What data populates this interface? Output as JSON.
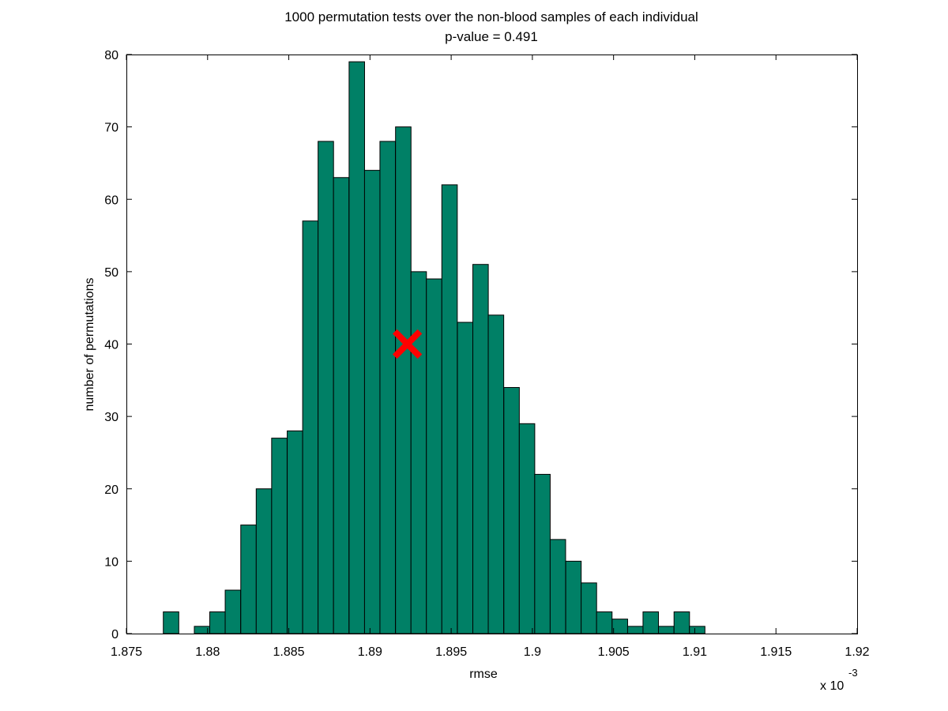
{
  "chart_data": {
    "type": "bar",
    "title": "1000 permutation tests over the non-blood samples of each individual",
    "subtitle": "p-value = 0.491",
    "xlabel": "rmse",
    "ylabel": "number of permutations",
    "x_exponent_label": "x 10",
    "x_exponent": "-3",
    "xlim": [
      1.875,
      1.92
    ],
    "ylim": [
      0,
      80
    ],
    "x_ticks": [
      1.875,
      1.88,
      1.885,
      1.89,
      1.895,
      1.9,
      1.905,
      1.91,
      1.915,
      1.92
    ],
    "x_tick_labels": [
      "1.875",
      "1.88",
      "1.885",
      "1.89",
      "1.895",
      "1.9",
      "1.905",
      "1.91",
      "1.915",
      "1.92"
    ],
    "y_ticks": [
      0,
      10,
      20,
      30,
      40,
      50,
      60,
      70,
      80
    ],
    "y_tick_labels": [
      "0",
      "10",
      "20",
      "30",
      "40",
      "50",
      "60",
      "70",
      "80"
    ],
    "bin_width": 0.000953,
    "bins": [
      {
        "x": 1.87775,
        "count": 3
      },
      {
        "x": 1.87871,
        "count": 0
      },
      {
        "x": 1.87966,
        "count": 1
      },
      {
        "x": 1.88061,
        "count": 3
      },
      {
        "x": 1.88156,
        "count": 6
      },
      {
        "x": 1.88252,
        "count": 15
      },
      {
        "x": 1.88347,
        "count": 20
      },
      {
        "x": 1.88442,
        "count": 27
      },
      {
        "x": 1.88538,
        "count": 28
      },
      {
        "x": 1.88633,
        "count": 57
      },
      {
        "x": 1.88728,
        "count": 68
      },
      {
        "x": 1.88823,
        "count": 63
      },
      {
        "x": 1.88919,
        "count": 79
      },
      {
        "x": 1.89014,
        "count": 64
      },
      {
        "x": 1.89109,
        "count": 68
      },
      {
        "x": 1.89205,
        "count": 70
      },
      {
        "x": 1.893,
        "count": 50
      },
      {
        "x": 1.89395,
        "count": 49
      },
      {
        "x": 1.8949,
        "count": 62
      },
      {
        "x": 1.89586,
        "count": 43
      },
      {
        "x": 1.89681,
        "count": 51
      },
      {
        "x": 1.89776,
        "count": 44
      },
      {
        "x": 1.89872,
        "count": 34
      },
      {
        "x": 1.89967,
        "count": 29
      },
      {
        "x": 1.90062,
        "count": 22
      },
      {
        "x": 1.90157,
        "count": 13
      },
      {
        "x": 1.90253,
        "count": 10
      },
      {
        "x": 1.90348,
        "count": 7
      },
      {
        "x": 1.90443,
        "count": 3
      },
      {
        "x": 1.90539,
        "count": 2
      },
      {
        "x": 1.90634,
        "count": 1
      },
      {
        "x": 1.90729,
        "count": 3
      },
      {
        "x": 1.90824,
        "count": 1
      },
      {
        "x": 1.9092,
        "count": 3
      },
      {
        "x": 1.91015,
        "count": 1
      }
    ],
    "marker": {
      "x": 1.8923,
      "y": 40,
      "shape": "x",
      "color": "#ff0000"
    },
    "bar_color": "#008066",
    "grid": false
  }
}
